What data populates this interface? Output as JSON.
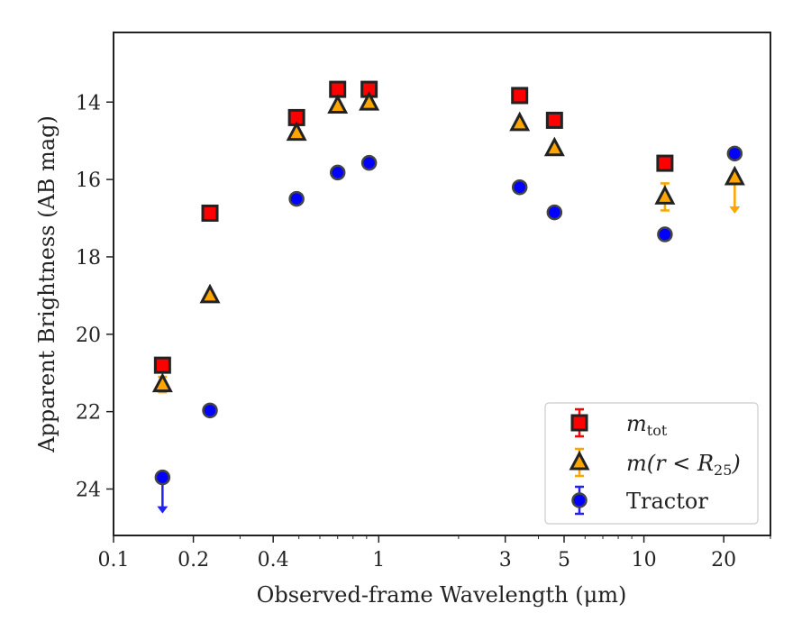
{
  "chart_data": {
    "type": "scatter",
    "title": "",
    "xlabel": "Observed-frame Wavelength (μm)",
    "ylabel": "Apparent Brightness (AB mag)",
    "xscale": "log",
    "xlim": [
      0.1,
      30
    ],
    "ylim": [
      25.2,
      12.2
    ],
    "y_inverted": true,
    "grid": false,
    "legend_position": "lower-right",
    "x_ticks": [
      {
        "value": 0.1,
        "label": "0.1"
      },
      {
        "value": 0.2,
        "label": "0.2"
      },
      {
        "value": 0.4,
        "label": "0.4"
      },
      {
        "value": 1,
        "label": "1"
      },
      {
        "value": 3,
        "label": "3"
      },
      {
        "value": 5,
        "label": "5"
      },
      {
        "value": 10,
        "label": "10"
      },
      {
        "value": 20,
        "label": "20"
      }
    ],
    "x_minor_ticks": [
      0.3,
      0.5,
      0.6,
      0.7,
      0.8,
      0.9,
      2,
      4,
      6,
      7,
      8,
      9,
      30
    ],
    "y_ticks": [
      {
        "value": 14,
        "label": "14"
      },
      {
        "value": 16,
        "label": "16"
      },
      {
        "value": 18,
        "label": "18"
      },
      {
        "value": 20,
        "label": "20"
      },
      {
        "value": 22,
        "label": "22"
      },
      {
        "value": 24,
        "label": "24"
      }
    ],
    "series": [
      {
        "name": "m_tot",
        "marker": "square",
        "color": "#ff0000",
        "errcolor": "#ff0000",
        "points": [
          {
            "x": 0.153,
            "y": 20.8
          },
          {
            "x": 0.231,
            "y": 16.87
          },
          {
            "x": 0.49,
            "y": 14.4
          },
          {
            "x": 0.7,
            "y": 13.67
          },
          {
            "x": 0.92,
            "y": 13.67
          },
          {
            "x": 3.4,
            "y": 13.83
          },
          {
            "x": 4.6,
            "y": 14.47
          },
          {
            "x": 12.0,
            "y": 15.58
          }
        ]
      },
      {
        "name": "m(r<R25)",
        "marker": "triangle",
        "color": "#ffa500",
        "errcolor": "#ffa500",
        "points": [
          {
            "x": 0.153,
            "y": 21.3,
            "yerr": 0.2
          },
          {
            "x": 0.231,
            "y": 19.0
          },
          {
            "x": 0.49,
            "y": 14.8
          },
          {
            "x": 0.7,
            "y": 14.1
          },
          {
            "x": 0.92,
            "y": 14.02
          },
          {
            "x": 3.4,
            "y": 14.55
          },
          {
            "x": 4.6,
            "y": 15.2
          },
          {
            "x": 12.0,
            "y": 16.45,
            "yerr": 0.35
          },
          {
            "x": 22.0,
            "y": 15.95,
            "upper_limit": true
          }
        ]
      },
      {
        "name": "Tractor",
        "marker": "circle",
        "color": "#0000ff",
        "errcolor": "#2222ee",
        "points": [
          {
            "x": 0.153,
            "y": 23.7,
            "upper_limit": true
          },
          {
            "x": 0.231,
            "y": 21.97
          },
          {
            "x": 0.49,
            "y": 16.5
          },
          {
            "x": 0.7,
            "y": 15.82
          },
          {
            "x": 0.92,
            "y": 15.57
          },
          {
            "x": 3.4,
            "y": 16.2
          },
          {
            "x": 4.6,
            "y": 16.85
          },
          {
            "x": 12.0,
            "y": 17.42
          },
          {
            "x": 22.0,
            "y": 15.33
          }
        ]
      }
    ]
  },
  "legend": {
    "items": [
      {
        "series": "m_tot",
        "base": "m",
        "sub": "tot",
        "suffix": ""
      },
      {
        "series": "m(r<R25)",
        "base": "m(r < R",
        "sub": "25",
        "suffix": ")"
      },
      {
        "series": "Tractor",
        "base": "Tractor",
        "sub": "",
        "suffix": ""
      }
    ]
  }
}
